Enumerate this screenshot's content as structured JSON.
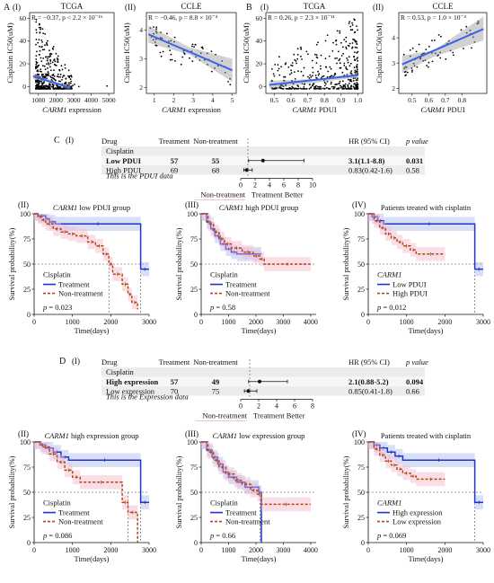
{
  "panels": {
    "A": "A",
    "B": "B",
    "C": "C",
    "D": "D",
    "I": "(I)",
    "II": "(II)",
    "III": "(III)",
    "IV": "(IV)"
  },
  "chart_data": [
    {
      "id": "A-I",
      "type": "scatter",
      "title": "TCGA",
      "stat": "R = −0.37, p < 2.2 × 10⁻¹⁶",
      "xlabel_italic": "CARM1",
      "xlabel_rest": " expression",
      "ylabel": "Cisplatin IC50(uM)",
      "xlim": [
        500,
        5300
      ],
      "ylim": [
        -6,
        65
      ],
      "xticks": [
        1000,
        2000,
        3000,
        4000,
        5000
      ],
      "xtick_labels": [
        "1000",
        "2000",
        "3000",
        "4000",
        "5000"
      ],
      "yticks": [
        0,
        20,
        40,
        60
      ],
      "ytick_labels": [
        "0",
        "20",
        "40",
        "60"
      ],
      "fit": {
        "x": [
          700,
          2800
        ],
        "y": [
          9,
          -1
        ]
      },
      "band": {
        "x": [
          700,
          1800,
          2800
        ],
        "lo": [
          6.5,
          3,
          -3
        ],
        "hi": [
          11.5,
          5,
          1
        ]
      },
      "points": {
        "seed": 11,
        "n": 420,
        "xmin": 850,
        "xmax": 2900,
        "xmode": "left",
        "ymode": "decay",
        "ymax": 63,
        "outliers": [
          [
            3300,
            0
          ],
          [
            4900,
            0.5
          ],
          [
            3050,
            2
          ],
          [
            2950,
            1
          ]
        ]
      }
    },
    {
      "id": "A-II",
      "type": "scatter",
      "title": "CCLE",
      "stat": "R = −0.46, p = 8.8 × 10⁻⁴",
      "xlabel_italic": "CARM1",
      "xlabel_rest": " expression",
      "ylabel": "Cisplatin IC50(uM)",
      "xlim": [
        0.6,
        5.2
      ],
      "ylim": [
        1.8,
        4.6
      ],
      "xticks": [
        1,
        2,
        3,
        4,
        5
      ],
      "xtick_labels": [
        "1",
        "2",
        "3",
        "4",
        "5"
      ],
      "yticks": [
        2,
        3,
        4
      ],
      "ytick_labels": [
        "2",
        "3",
        "4"
      ],
      "fit": {
        "x": [
          0.7,
          5.0
        ],
        "y": [
          3.85,
          2.6
        ]
      },
      "band": {
        "x": [
          0.7,
          2.8,
          5.0
        ],
        "lo": [
          3.55,
          3.15,
          2.2
        ],
        "hi": [
          4.15,
          3.4,
          3.0
        ]
      },
      "points": {
        "seed": 23,
        "n": 70,
        "xmin": 0.8,
        "xmax": 4.9,
        "xmode": "uniform",
        "ymode": "linear",
        "slope": -0.29,
        "intercept": 3.95,
        "spread": 0.5
      }
    },
    {
      "id": "B-I",
      "type": "scatter",
      "title": "TCGA",
      "stat": "R = 0.26, p = 2.3 × 10⁻¹¹",
      "xlabel_italic": "CARM1",
      "xlabel_rest": " PDUI",
      "ylabel": "Cisplatin IC50(uM)",
      "xlim": [
        0.45,
        1.03
      ],
      "ylim": [
        -6,
        65
      ],
      "xticks": [
        0.5,
        0.6,
        0.7,
        0.8,
        0.9,
        1.0
      ],
      "xtick_labels": [
        "0.5",
        "0.6",
        "0.7",
        "0.8",
        "0.9",
        "1.0"
      ],
      "yticks": [
        0,
        20,
        40,
        60
      ],
      "ytick_labels": [
        "0",
        "20",
        "40",
        "60"
      ],
      "fit": {
        "x": [
          0.47,
          1.0
        ],
        "y": [
          1.5,
          10
        ]
      },
      "band": {
        "x": [
          0.47,
          0.8,
          1.0
        ],
        "lo": [
          -2,
          4.5,
          8
        ],
        "hi": [
          5,
          7,
          12.5
        ]
      },
      "points": {
        "seed": 37,
        "n": 420,
        "xmin": 0.48,
        "xmax": 1.0,
        "xmode": "right",
        "ymode": "decay",
        "ymax": 63
      }
    },
    {
      "id": "B-II",
      "type": "scatter",
      "title": "CCLE",
      "stat": "R = 0.53, p = 1.0 × 10⁻⁴",
      "xlabel_italic": "CARM1",
      "xlabel_rest": " PDUI",
      "ylabel": "Cisplatin IC50(uM)",
      "xlim": [
        0.42,
        0.95
      ],
      "ylim": [
        1.8,
        5.0
      ],
      "xticks": [
        0.5,
        0.6,
        0.7,
        0.8
      ],
      "xtick_labels": [
        "0.5",
        "0.6",
        "0.7",
        "0.8"
      ],
      "yticks": [
        2,
        3,
        4
      ],
      "ytick_labels": [
        "2",
        "3",
        "4"
      ],
      "fit": {
        "x": [
          0.44,
          0.93
        ],
        "y": [
          2.95,
          4.35
        ]
      },
      "band": {
        "x": [
          0.44,
          0.63,
          0.93
        ],
        "lo": [
          2.6,
          3.25,
          3.9
        ],
        "hi": [
          3.3,
          3.5,
          4.85
        ]
      },
      "points": {
        "seed": 51,
        "n": 65,
        "xmin": 0.45,
        "xmax": 0.9,
        "xmode": "left",
        "ymode": "linear",
        "slope": 2.9,
        "intercept": 1.65,
        "spread": 0.55
      }
    },
    {
      "id": "C-I",
      "type": "table",
      "headers": {
        "drug": "Drug",
        "treat": "Treatment",
        "nontreat": "Non-treatment",
        "hr": "HR (95% CI)",
        "p": "p value"
      },
      "group": "Cisplatin",
      "rows": [
        {
          "label": "Low PDUI",
          "treat": "57",
          "nontreat": "55",
          "hr_text": "3.1(1.1-8.8)",
          "p": "0.031",
          "hr": 3.1,
          "lo": 1.1,
          "hi": 8.8,
          "bold": true
        },
        {
          "label": "High PDUI",
          "treat": "69",
          "nontreat": "68",
          "hr_text": "0.83(0.42-1.6)",
          "p": "0.58",
          "hr": 0.83,
          "lo": 0.42,
          "hi": 1.6,
          "bold": false
        }
      ],
      "note": "This is the PDUI data",
      "xlim": [
        0,
        10
      ],
      "xticks": [
        0,
        2,
        4,
        6,
        8,
        10
      ],
      "xtick_labels": [
        "0",
        "2",
        "4",
        "6",
        "8",
        "10"
      ],
      "left_label": "Non-treatment",
      "right_label": "Treatment Better"
    },
    {
      "id": "D-I",
      "type": "table",
      "headers": {
        "drug": "Drug",
        "treat": "Treatment",
        "nontreat": "Non-treatment",
        "hr": "HR (95% CI)",
        "p": "p value"
      },
      "group": "Cisplatin",
      "rows": [
        {
          "label": "High expression",
          "treat": "57",
          "nontreat": "49",
          "hr_text": "2.1(0.88-5.2)",
          "p": "0.094",
          "hr": 2.1,
          "lo": 0.88,
          "hi": 5.2,
          "bold": true
        },
        {
          "label": "Low expression",
          "treat": "70",
          "nontreat": "75",
          "hr_text": "0.85(0.41-1.8)",
          "p": "0.66",
          "hr": 0.85,
          "lo": 0.41,
          "hi": 1.8,
          "bold": false
        }
      ],
      "note": "This is the Expression data",
      "xlim": [
        0,
        8
      ],
      "xticks": [
        0,
        2,
        4,
        6,
        8
      ],
      "xtick_labels": [
        "0",
        "2",
        "4",
        "6",
        "8"
      ],
      "left_label": "Non-treatment",
      "right_label": "Treatment Better"
    },
    {
      "id": "C-II",
      "type": "line",
      "subtype": "survival",
      "title_italic": "CARM1",
      "title_rest": " low PDUI group",
      "ylabel": "Survival probability(%)",
      "xlabel": "Time(days)",
      "xlim": [
        0,
        3000
      ],
      "ylim": [
        0,
        100
      ],
      "xticks": [
        0,
        1000,
        2000,
        3000
      ],
      "xtick_labels": [
        "0",
        "1000",
        "2000",
        "3000"
      ],
      "yticks": [
        0,
        25,
        50,
        75,
        100
      ],
      "ytick_labels": [
        "0",
        "25",
        "50",
        "75",
        "100"
      ],
      "legend_title": "Cisplatin",
      "legend_title_italic": false,
      "p_text": "= 0.023",
      "median_lines": [
        1950,
        2780
      ],
      "series": [
        {
          "name": "Treatment",
          "color": "#1f35c9",
          "dash": false,
          "x": [
            0,
            100,
            300,
            400,
            550,
            2780,
            3000
          ],
          "y": [
            100,
            98,
            95,
            92,
            90,
            45,
            45
          ]
        },
        {
          "name": "Non-treatment",
          "color": "#b5461a",
          "dash": true,
          "x": [
            0,
            100,
            200,
            300,
            500,
            700,
            900,
            1100,
            1400,
            1600,
            1800,
            1950,
            2050,
            2300,
            2450,
            2550,
            2700
          ],
          "y": [
            100,
            97,
            94,
            90,
            85,
            82,
            80,
            78,
            72,
            68,
            60,
            50,
            40,
            30,
            20,
            12,
            5
          ]
        }
      ]
    },
    {
      "id": "C-III",
      "type": "line",
      "subtype": "survival",
      "title_italic": "CARM1",
      "title_rest": " high PDUI group",
      "ylabel": "Survival probability(%)",
      "xlabel": "Time(days)",
      "xlim": [
        0,
        4200
      ],
      "ylim": [
        0,
        100
      ],
      "xticks": [
        0,
        1000,
        2000,
        3000,
        4000
      ],
      "xtick_labels": [
        "0",
        "1000",
        "2000",
        "3000",
        "4000"
      ],
      "yticks": [
        0,
        25,
        50,
        75,
        100
      ],
      "ytick_labels": [
        "0",
        "25",
        "50",
        "75",
        "100"
      ],
      "legend_title": "Cisplatin",
      "legend_title_italic": false,
      "p_text": "= 0.58",
      "median_lines": [],
      "series": [
        {
          "name": "Treatment",
          "color": "#1f35c9",
          "dash": false,
          "x": [
            0,
            200,
            350,
            500,
            700,
            900,
            1100,
            1300,
            2200
          ],
          "y": [
            100,
            92,
            85,
            78,
            70,
            65,
            62,
            60,
            60
          ]
        },
        {
          "name": "Non-treatment",
          "color": "#b5461a",
          "dash": true,
          "x": [
            0,
            250,
            450,
            650,
            850,
            1100,
            1500,
            1900,
            2150,
            2300,
            4000
          ],
          "y": [
            100,
            90,
            82,
            75,
            70,
            66,
            62,
            58,
            55,
            50,
            50
          ]
        }
      ]
    },
    {
      "id": "C-IV",
      "type": "line",
      "subtype": "survival",
      "title_italic": "",
      "title_rest": "Patients treated with cisplatin",
      "ylabel": "Survival probability(%)",
      "xlabel": "Time(days)",
      "xlim": [
        0,
        3000
      ],
      "ylim": [
        0,
        100
      ],
      "xticks": [
        0,
        1000,
        2000,
        3000
      ],
      "xtick_labels": [
        "0",
        "1000",
        "2000",
        "3000"
      ],
      "yticks": [
        0,
        25,
        50,
        75,
        100
      ],
      "ytick_labels": [
        "0",
        "25",
        "50",
        "75",
        "100"
      ],
      "legend_title": "CARM1",
      "legend_title_italic": true,
      "p_text": "= 0.012",
      "median_lines": [
        2780
      ],
      "series": [
        {
          "name": "Low   PDUI",
          "color": "#1f35c9",
          "dash": false,
          "x": [
            0,
            100,
            250,
            400,
            2780,
            3000
          ],
          "y": [
            100,
            97,
            93,
            90,
            45,
            45
          ]
        },
        {
          "name": "High  PDUI",
          "color": "#b5461a",
          "dash": true,
          "x": [
            0,
            150,
            300,
            450,
            600,
            750,
            900,
            1100,
            1250,
            2000
          ],
          "y": [
            100,
            93,
            86,
            80,
            76,
            72,
            68,
            64,
            60,
            60
          ]
        }
      ]
    },
    {
      "id": "D-II",
      "type": "line",
      "subtype": "survival",
      "title_italic": "CARM1",
      "title_rest": " high expression group",
      "ylabel": "Survival probability(%)",
      "xlabel": "Time(days)",
      "xlim": [
        0,
        3000
      ],
      "ylim": [
        0,
        100
      ],
      "xticks": [
        0,
        1000,
        2000,
        3000
      ],
      "xtick_labels": [
        "0",
        "1000",
        "2000",
        "3000"
      ],
      "yticks": [
        0,
        25,
        50,
        75,
        100
      ],
      "ytick_labels": [
        "0",
        "25",
        "50",
        "75",
        "100"
      ],
      "legend_title": "Cisplatin",
      "legend_title_italic": false,
      "p_text": "= 0.086",
      "median_lines": [
        2450,
        2780
      ],
      "series": [
        {
          "name": "Treatment",
          "color": "#1f35c9",
          "dash": false,
          "x": [
            0,
            150,
            300,
            500,
            700,
            900,
            2780,
            3000
          ],
          "y": [
            100,
            97,
            94,
            90,
            85,
            82,
            40,
            40
          ]
        },
        {
          "name": "Non-treatment",
          "color": "#b5461a",
          "dash": true,
          "x": [
            0,
            200,
            400,
            600,
            800,
            1000,
            1200,
            2300,
            2450,
            2700
          ],
          "y": [
            100,
            95,
            88,
            80,
            72,
            65,
            60,
            40,
            30,
            0
          ]
        }
      ]
    },
    {
      "id": "D-III",
      "type": "line",
      "subtype": "survival",
      "title_italic": "CARM1",
      "title_rest": " low expression group",
      "ylabel": "Survival probability(%)",
      "xlabel": "Time(days)",
      "xlim": [
        0,
        4200
      ],
      "ylim": [
        0,
        100
      ],
      "xticks": [
        0,
        1000,
        2000,
        3000,
        4000
      ],
      "xtick_labels": [
        "0",
        "1000",
        "2000",
        "3000",
        "4000"
      ],
      "yticks": [
        0,
        25,
        50,
        75,
        100
      ],
      "ytick_labels": [
        "0",
        "25",
        "50",
        "75",
        "100"
      ],
      "legend_title": "Cisplatin",
      "legend_title_italic": false,
      "p_text": "= 0.66",
      "median_lines": [
        2150
      ],
      "series": [
        {
          "name": "Treatment",
          "color": "#1f35c9",
          "dash": false,
          "x": [
            0,
            200,
            400,
            600,
            800,
            1000,
            1300,
            1600,
            2100,
            2200
          ],
          "y": [
            100,
            92,
            85,
            78,
            70,
            65,
            60,
            55,
            50,
            0
          ]
        },
        {
          "name": "Non-treatment",
          "color": "#b5461a",
          "dash": true,
          "x": [
            0,
            250,
            450,
            650,
            900,
            1200,
            1500,
            1800,
            2050,
            2200,
            4000
          ],
          "y": [
            100,
            90,
            82,
            75,
            68,
            62,
            58,
            52,
            48,
            38,
            38
          ]
        }
      ]
    },
    {
      "id": "D-IV",
      "type": "line",
      "subtype": "survival",
      "title_italic": "",
      "title_rest": "Patients treated with cisplatin",
      "ylabel": "Survival probability(%)",
      "xlabel": "Time(days)",
      "xlim": [
        0,
        3000
      ],
      "ylim": [
        0,
        100
      ],
      "xticks": [
        0,
        1000,
        2000,
        3000
      ],
      "xtick_labels": [
        "0",
        "1000",
        "2000",
        "3000"
      ],
      "yticks": [
        0,
        25,
        50,
        75,
        100
      ],
      "ytick_labels": [
        "0",
        "25",
        "50",
        "75",
        "100"
      ],
      "legend_title": "CARM1",
      "legend_title_italic": true,
      "p_text": "= 0.069",
      "median_lines": [
        2780
      ],
      "series": [
        {
          "name": "High  expression",
          "color": "#1f35c9",
          "dash": false,
          "x": [
            0,
            150,
            300,
            500,
            700,
            900,
            2780,
            3000
          ],
          "y": [
            100,
            97,
            94,
            90,
            86,
            82,
            40,
            40
          ]
        },
        {
          "name": "Low   expression",
          "color": "#b5461a",
          "dash": true,
          "x": [
            0,
            150,
            300,
            450,
            600,
            750,
            900,
            1100,
            1250,
            2000
          ],
          "y": [
            100,
            93,
            87,
            81,
            77,
            73,
            69,
            66,
            63,
            63
          ]
        }
      ]
    }
  ]
}
